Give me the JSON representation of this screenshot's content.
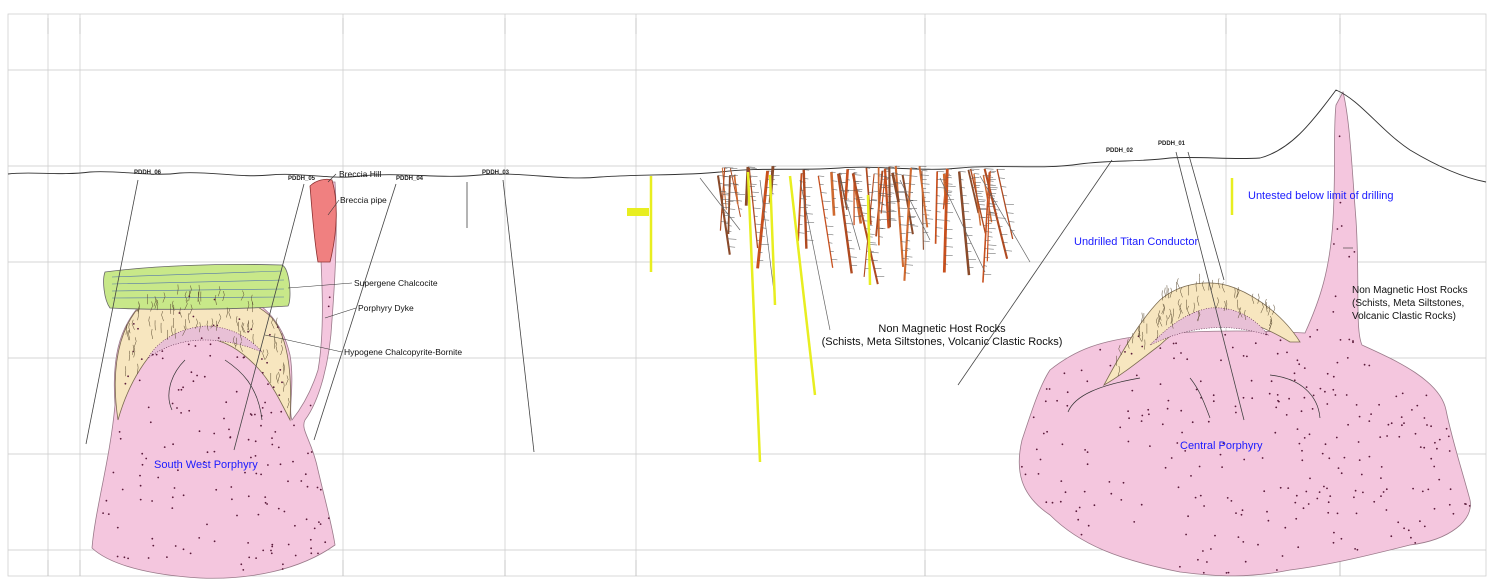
{
  "holes": [
    {
      "id": "pddh_06",
      "label": "PDDH_06"
    },
    {
      "id": "pddh_05",
      "label": "PDDH_05"
    },
    {
      "id": "pddh_04",
      "label": "PDDH_04"
    },
    {
      "id": "pddh_03",
      "label": "PDDH_03"
    },
    {
      "id": "pddh_02",
      "label": "PDDH_02"
    },
    {
      "id": "pddh_01",
      "label": "PDDH_01"
    }
  ],
  "labels": {
    "breccia_hill": "Breccia Hill",
    "breccia_pipe": "Breccia pipe",
    "supergene": "Supergene Chalcocite",
    "porphyry_dyke": "Porphyry Dyke",
    "hypogene": "Hypogene Chalcopyrite-Bornite",
    "host_center": [
      "Non Magnetic Host Rocks",
      "(Schists, Meta Siltstones, Volcanic Clastic Rocks)"
    ],
    "host_right": [
      "Non Magnetic Host Rocks",
      "(Schists, Meta Siltstones,",
      "Volcanic Clastic Rocks)"
    ],
    "south_west": "South West Porphyry",
    "central": "Central Porphyry",
    "titan": "Undrilled Titan Conductor",
    "untested": "Untested below limit of drilling"
  },
  "colors": {
    "porphyry": "#f4c6de",
    "alteration": "#f7e6bf",
    "supergene": "#c8e889",
    "breccia": "#f08080",
    "blue_text": "#1a1aff",
    "drill_red": "#c8501e",
    "drill_yellow": "#e8ee20"
  }
}
